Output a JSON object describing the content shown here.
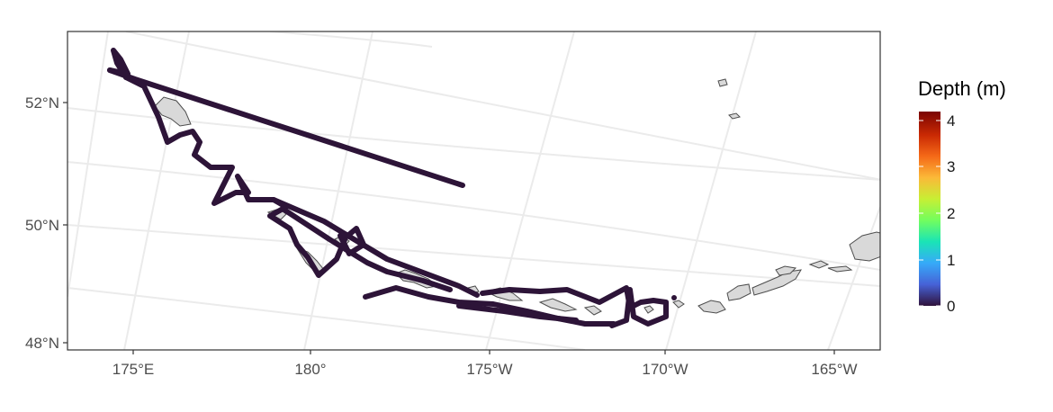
{
  "map": {
    "lat_labels": [
      "52°N",
      "50°N",
      "48°N"
    ],
    "lon_labels": [
      "175°E",
      "180°",
      "175°W",
      "170°W",
      "165°W"
    ]
  },
  "legend": {
    "title": "Depth (m)",
    "labels": [
      "4",
      "3",
      "2",
      "1",
      "0"
    ],
    "min": 0,
    "max": 4.2,
    "colormap": [
      "#30123b",
      "#4662d7",
      "#36aaf9",
      "#1ae4b6",
      "#72fe5e",
      "#c7ef34",
      "#fbb938",
      "#f56918",
      "#c92903",
      "#7a0403"
    ]
  },
  "colors": {
    "track": "#2d1438",
    "land_fill": "#d9d9d9",
    "land_stroke": "#4d4d4d",
    "grid": "#ebebeb",
    "panel_border": "#333333"
  }
}
